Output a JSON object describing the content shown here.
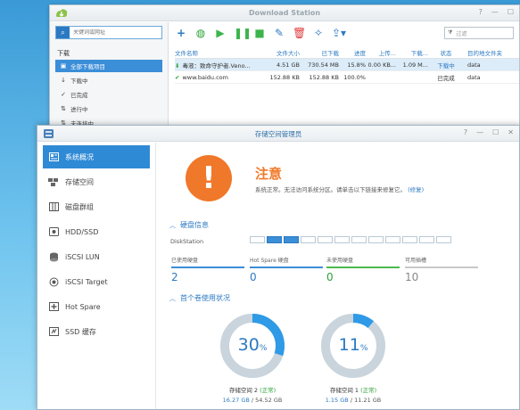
{
  "download_station": {
    "title": "Download Station",
    "search_placeholder": "关键词或网址",
    "group_label": "下载",
    "nav": [
      {
        "label": "全部下载项目",
        "icon": "download-all-icon"
      },
      {
        "label": "下载中",
        "icon": "arrow-down-icon"
      },
      {
        "label": "已完成",
        "icon": "check-icon"
      },
      {
        "label": "进行中",
        "icon": "transfer-icon"
      },
      {
        "label": "未连接中",
        "icon": "transfer-icon"
      }
    ],
    "filter_placeholder": "过滤",
    "columns": [
      "文件名称",
      "文件大小",
      "已下载",
      "进度",
      "上传...",
      "下载...",
      "状态",
      "目的地文件夹"
    ],
    "rows": [
      [
        "毒液：致命守护者.Veno...",
        "4.51 GB",
        "730.54 MB",
        "15.8%",
        "0.00 KB...",
        "1.09 M...",
        "下载中",
        "data"
      ],
      [
        "www.baidu.com",
        "152.88 KB",
        "152.88 KB",
        "100.0%",
        "",
        "",
        "已完成",
        "data"
      ]
    ]
  },
  "storage_manager": {
    "title": "存储空间管理员",
    "nav": [
      {
        "label": "系统概况",
        "icon": "overview-icon"
      },
      {
        "label": "存储空间",
        "icon": "storage-icon"
      },
      {
        "label": "磁盘群组",
        "icon": "disk-group-icon"
      },
      {
        "label": "HDD/SSD",
        "icon": "hdd-icon"
      },
      {
        "label": "iSCSI LUN",
        "icon": "iscsi-lun-icon"
      },
      {
        "label": "iSCSI Target",
        "icon": "iscsi-target-icon"
      },
      {
        "label": "Hot Spare",
        "icon": "hot-spare-icon"
      },
      {
        "label": "SSD 缓存",
        "icon": "ssd-cache-icon"
      }
    ],
    "alert": {
      "title": "注意",
      "message": "系统正常。无法访问系统分区。请单击以下链接来修复它。",
      "link": "(修复)"
    },
    "disk_info": {
      "heading": "硬盘信息",
      "station_label": "DiskStation",
      "slots_total": 12,
      "slots_used": [
        1,
        2
      ],
      "stats": [
        {
          "label": "已使用硬盘",
          "value": "2"
        },
        {
          "label": "Hot Spare 硬盘",
          "value": "0"
        },
        {
          "label": "未使用硬盘",
          "value": "0"
        },
        {
          "label": "可用插槽",
          "value": "10"
        }
      ]
    },
    "volume_usage": {
      "heading": "首个卷使用状况",
      "volumes": [
        {
          "percent": "30",
          "percent_value": 30,
          "unit": "%",
          "name": "存储空间 2",
          "status": "(正常)",
          "used": "16.27 GB",
          "total": "/ 54.52 GB"
        },
        {
          "percent": "11",
          "percent_value": 11,
          "unit": "%",
          "name": "存储空间 1",
          "status": "(正常)",
          "used": "1.15 GB",
          "total": "/ 11.21 GB"
        }
      ]
    },
    "colors": {
      "accent": "#2f8ad6",
      "warning": "#f0782a",
      "ok": "#2aa138"
    }
  }
}
